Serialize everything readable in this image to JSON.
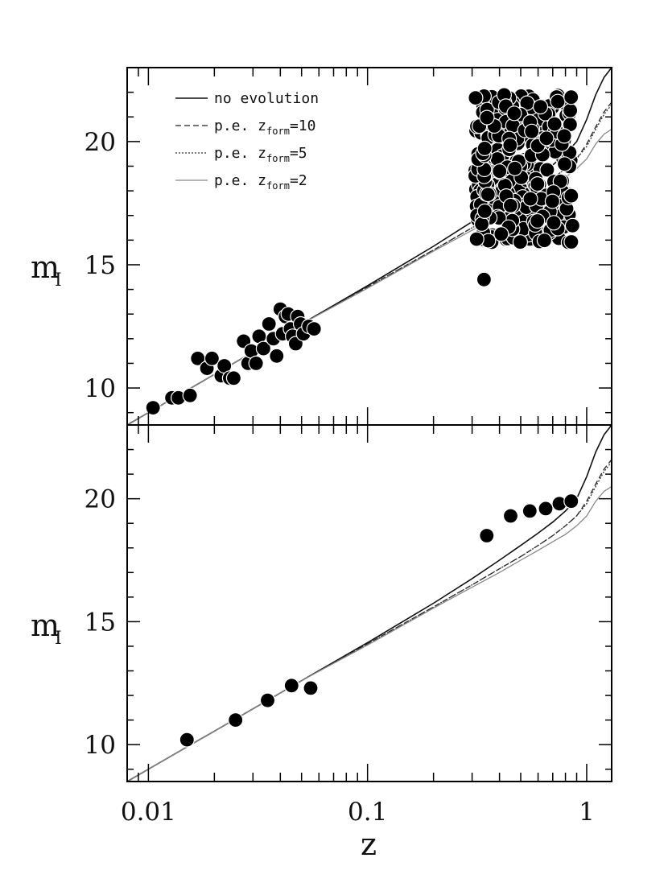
{
  "chart_data": [
    {
      "panel": "top",
      "type": "scatter",
      "xlabel": "",
      "ylabel": "m",
      "ylabel_sub": "I",
      "xscale": "log",
      "xlim": [
        0.008,
        1.3
      ],
      "ylim": [
        8.5,
        23
      ],
      "yticks": [
        10,
        15,
        20
      ],
      "xticks": [
        0.01,
        0.1,
        1
      ],
      "legend": {
        "placement": "top-left",
        "entries": [
          {
            "prefix": "no evolution",
            "sub": "",
            "suffix": "",
            "style": "solid"
          },
          {
            "prefix": "p.e. z",
            "sub": "form",
            "suffix": "=10",
            "style": "dashed"
          },
          {
            "prefix": "p.e. z",
            "sub": "form",
            "suffix": "=5",
            "style": "dotted"
          },
          {
            "prefix": "p.e. z",
            "sub": "form",
            "suffix": "=2",
            "style": "lightsolid"
          }
        ]
      },
      "points_low_z": [
        [
          0.0105,
          9.2
        ],
        [
          0.0128,
          9.6
        ],
        [
          0.0137,
          9.6
        ],
        [
          0.0155,
          9.7
        ],
        [
          0.0168,
          11.2
        ],
        [
          0.0185,
          10.8
        ],
        [
          0.0195,
          11.2
        ],
        [
          0.0215,
          10.5
        ],
        [
          0.0222,
          10.9
        ],
        [
          0.0235,
          10.4
        ],
        [
          0.0245,
          10.4
        ],
        [
          0.0272,
          11.9
        ],
        [
          0.0285,
          11.0
        ],
        [
          0.0295,
          11.5
        ],
        [
          0.031,
          11.0
        ],
        [
          0.032,
          12.1
        ],
        [
          0.0335,
          11.6
        ],
        [
          0.0355,
          12.6
        ],
        [
          0.0372,
          12.0
        ],
        [
          0.0385,
          11.3
        ],
        [
          0.04,
          13.2
        ],
        [
          0.041,
          12.2
        ],
        [
          0.0422,
          12.9
        ],
        [
          0.0435,
          13.0
        ],
        [
          0.0445,
          12.4
        ],
        [
          0.0455,
          12.1
        ],
        [
          0.047,
          11.8
        ],
        [
          0.048,
          12.9
        ],
        [
          0.0495,
          12.6
        ],
        [
          0.051,
          12.2
        ],
        [
          0.054,
          12.5
        ],
        [
          0.057,
          12.4
        ]
      ],
      "points_high_z_cloud": {
        "z_range": [
          0.31,
          0.87
        ],
        "m_range": [
          15.9,
          21.9
        ],
        "note_outliers": [
          [
            0.34,
            14.4
          ],
          [
            0.85,
            17.8
          ]
        ]
      }
    },
    {
      "panel": "bottom",
      "type": "scatter",
      "xlabel": "z",
      "ylabel": "m",
      "ylabel_sub": "I",
      "xscale": "log",
      "xlim": [
        0.008,
        1.3
      ],
      "ylim": [
        8.5,
        23
      ],
      "yticks": [
        10,
        15,
        20
      ],
      "xticks": [
        0.01,
        0.1,
        1
      ],
      "xticklabels": [
        "0.01",
        "0.1",
        "1"
      ],
      "points": [
        [
          0.015,
          10.2
        ],
        [
          0.025,
          11.0
        ],
        [
          0.035,
          11.8
        ],
        [
          0.045,
          12.4
        ],
        [
          0.055,
          12.3
        ],
        [
          0.35,
          18.5
        ],
        [
          0.45,
          19.3
        ],
        [
          0.55,
          19.5
        ],
        [
          0.65,
          19.6
        ],
        [
          0.75,
          19.8
        ],
        [
          0.85,
          19.9
        ]
      ]
    }
  ],
  "models": {
    "z": [
      0.008,
      0.01,
      0.02,
      0.05,
      0.1,
      0.2,
      0.3,
      0.4,
      0.5,
      0.6,
      0.7,
      0.8,
      0.9,
      1.0,
      1.1,
      1.2,
      1.3
    ],
    "no_evolution": [
      8.5,
      9.0,
      10.55,
      12.6,
      14.15,
      15.75,
      16.75,
      17.5,
      18.1,
      18.6,
      19.05,
      19.5,
      20.0,
      20.9,
      21.9,
      22.6,
      23.0
    ],
    "pe_zform10": [
      8.5,
      9.0,
      10.55,
      12.6,
      14.1,
      15.6,
      16.5,
      17.15,
      17.65,
      18.1,
      18.5,
      18.9,
      19.3,
      19.9,
      20.6,
      21.2,
      21.6
    ],
    "pe_zform5": [
      8.5,
      9.0,
      10.55,
      12.6,
      14.1,
      15.6,
      16.5,
      17.15,
      17.65,
      18.1,
      18.5,
      18.9,
      19.3,
      19.8,
      20.5,
      21.1,
      21.5
    ],
    "pe_zform2": [
      8.5,
      9.0,
      10.55,
      12.6,
      14.05,
      15.55,
      16.4,
      17.0,
      17.5,
      17.9,
      18.25,
      18.55,
      18.9,
      19.3,
      19.9,
      20.3,
      20.5
    ]
  }
}
